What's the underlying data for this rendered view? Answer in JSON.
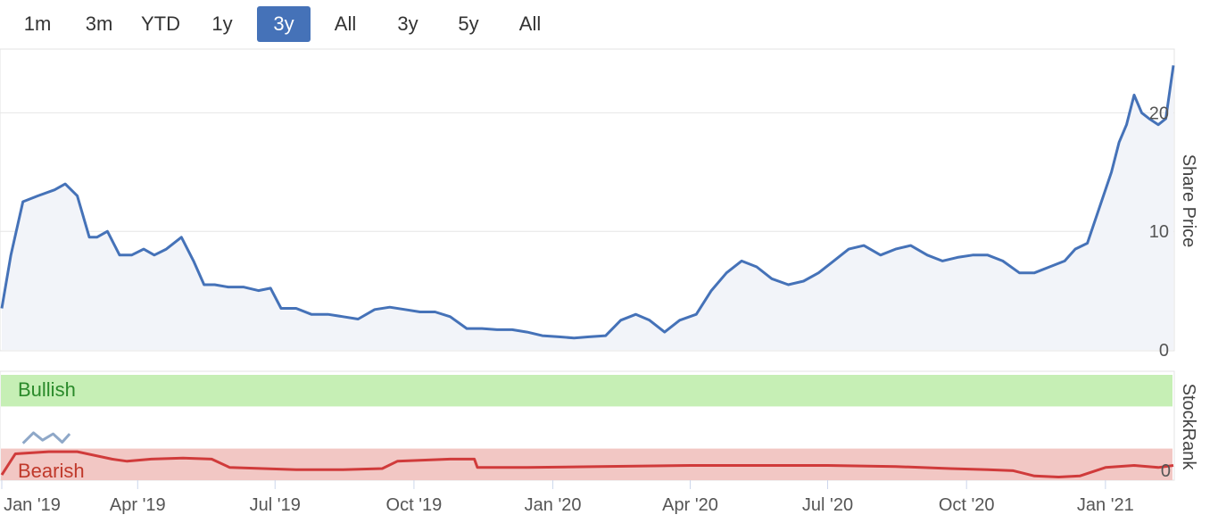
{
  "range_buttons": [
    {
      "label": "1m",
      "active": false
    },
    {
      "label": "3m",
      "active": false
    },
    {
      "label": "YTD",
      "active": false
    },
    {
      "label": "1y",
      "active": false
    },
    {
      "label": "3y",
      "active": true
    },
    {
      "label": "All",
      "active": false
    },
    {
      "label": "3y",
      "active": false
    },
    {
      "label": "5y",
      "active": false
    },
    {
      "label": "All",
      "active": false
    }
  ],
  "chart_data": [
    {
      "type": "area",
      "ylabel": "Share Price",
      "ylim": [
        0,
        25
      ],
      "yticks": [
        0,
        10,
        20
      ],
      "x_start": "2019-01-01",
      "x_end": "2021-02-15",
      "xticks": [
        {
          "date": "2019-01-01",
          "label": "Jan '19"
        },
        {
          "date": "2019-04-01",
          "label": "Apr '19"
        },
        {
          "date": "2019-07-01",
          "label": "Jul '19"
        },
        {
          "date": "2019-10-01",
          "label": "Oct '19"
        },
        {
          "date": "2020-01-01",
          "label": "Jan '20"
        },
        {
          "date": "2020-04-01",
          "label": "Apr '20"
        },
        {
          "date": "2020-07-01",
          "label": "Jul '20"
        },
        {
          "date": "2020-10-01",
          "label": "Oct '20"
        },
        {
          "date": "2021-01-01",
          "label": "Jan '21"
        }
      ],
      "grid": true,
      "color": "#4572b8",
      "series": [
        {
          "x": [
            "2019-01-01",
            "2019-01-07",
            "2019-01-15",
            "2019-01-25",
            "2019-02-05",
            "2019-02-12",
            "2019-02-20",
            "2019-02-28",
            "2019-03-05",
            "2019-03-12",
            "2019-03-20",
            "2019-03-28",
            "2019-04-05",
            "2019-04-12",
            "2019-04-20",
            "2019-04-30",
            "2019-05-08",
            "2019-05-15",
            "2019-05-22",
            "2019-05-31",
            "2019-06-10",
            "2019-06-20",
            "2019-06-28",
            "2019-07-05",
            "2019-07-15",
            "2019-07-25",
            "2019-08-05",
            "2019-08-15",
            "2019-08-25",
            "2019-09-05",
            "2019-09-15",
            "2019-09-25",
            "2019-10-05",
            "2019-10-15",
            "2019-10-25",
            "2019-11-05",
            "2019-11-15",
            "2019-11-25",
            "2019-12-05",
            "2019-12-15",
            "2019-12-25",
            "2020-01-05",
            "2020-01-15",
            "2020-01-25",
            "2020-02-05",
            "2020-02-15",
            "2020-02-25",
            "2020-03-05",
            "2020-03-15",
            "2020-03-25",
            "2020-04-05",
            "2020-04-15",
            "2020-04-25",
            "2020-05-05",
            "2020-05-15",
            "2020-05-25",
            "2020-06-05",
            "2020-06-15",
            "2020-06-25",
            "2020-07-05",
            "2020-07-15",
            "2020-07-25",
            "2020-08-05",
            "2020-08-15",
            "2020-08-25",
            "2020-09-05",
            "2020-09-15",
            "2020-09-25",
            "2020-10-05",
            "2020-10-15",
            "2020-10-25",
            "2020-11-05",
            "2020-11-15",
            "2020-11-25",
            "2020-12-05",
            "2020-12-12",
            "2020-12-20",
            "2020-12-28",
            "2021-01-05",
            "2021-01-10",
            "2021-01-15",
            "2021-01-20",
            "2021-01-25",
            "2021-01-30",
            "2021-02-05",
            "2021-02-10",
            "2021-02-15"
          ],
          "y": [
            3.5,
            8.0,
            12.5,
            13.0,
            13.5,
            14.0,
            13.0,
            9.5,
            9.5,
            10.0,
            8.0,
            8.0,
            8.5,
            8.0,
            8.5,
            9.5,
            7.5,
            5.5,
            5.5,
            5.3,
            5.3,
            5.0,
            5.2,
            3.5,
            3.5,
            3.0,
            3.0,
            2.8,
            2.6,
            3.4,
            3.6,
            3.4,
            3.2,
            3.2,
            2.8,
            1.8,
            1.8,
            1.7,
            1.7,
            1.5,
            1.2,
            1.1,
            1.0,
            1.1,
            1.2,
            2.5,
            3.0,
            2.5,
            1.5,
            2.5,
            3.0,
            5.0,
            6.5,
            7.5,
            7.0,
            6.0,
            5.5,
            5.8,
            6.5,
            7.5,
            8.5,
            8.8,
            8.0,
            8.5,
            8.8,
            8.0,
            7.5,
            7.8,
            8.0,
            8.0,
            7.5,
            6.5,
            6.5,
            7.0,
            7.5,
            8.5,
            9.0,
            12.0,
            15.0,
            17.5,
            19.0,
            21.5,
            20.0,
            19.5,
            19.0,
            19.5,
            24.0
          ]
        }
      ]
    },
    {
      "type": "line",
      "ylabel": "StockRank",
      "yticks": [
        0
      ],
      "bands": [
        {
          "label": "Bullish",
          "color": "#c6efb5",
          "text_color": "#2a8a2a",
          "range": [
            70,
            100
          ]
        },
        {
          "label": "Bearish",
          "color": "#f2c7c4",
          "text_color": "#c0392b",
          "range": [
            0,
            30
          ]
        }
      ],
      "series": [
        {
          "name": "",
          "color": "#d03b3b",
          "x": [
            "2019-01-01",
            "2019-01-10",
            "2019-02-01",
            "2019-02-20",
            "2019-03-15",
            "2019-03-25",
            "2019-04-10",
            "2019-05-01",
            "2019-05-20",
            "2019-06-01",
            "2019-07-15",
            "2019-08-15",
            "2019-09-10",
            "2019-09-20",
            "2019-10-25",
            "2019-11-10",
            "2019-11-12",
            "2019-12-15",
            "2020-02-01",
            "2020-04-01",
            "2020-07-01",
            "2020-08-15",
            "2020-09-20",
            "2020-10-15",
            "2020-11-01",
            "2020-11-15",
            "2020-12-01",
            "2020-12-15",
            "2021-01-01",
            "2021-01-20",
            "2021-02-05",
            "2021-02-15"
          ],
          "y": [
            5,
            25,
            27,
            27,
            20,
            18,
            20,
            21,
            20,
            12,
            10,
            10,
            11,
            18,
            20,
            20,
            12,
            12,
            13,
            14,
            14,
            13,
            11,
            10,
            9,
            4,
            3,
            4,
            12,
            14,
            12,
            14
          ]
        },
        {
          "name": "",
          "color": "#8fa8c8",
          "x": [
            "2019-01-15",
            "2019-01-22",
            "2019-01-28",
            "2019-02-04",
            "2019-02-10",
            "2019-02-15"
          ],
          "y": [
            35,
            45,
            38,
            44,
            36,
            44
          ]
        }
      ]
    }
  ]
}
